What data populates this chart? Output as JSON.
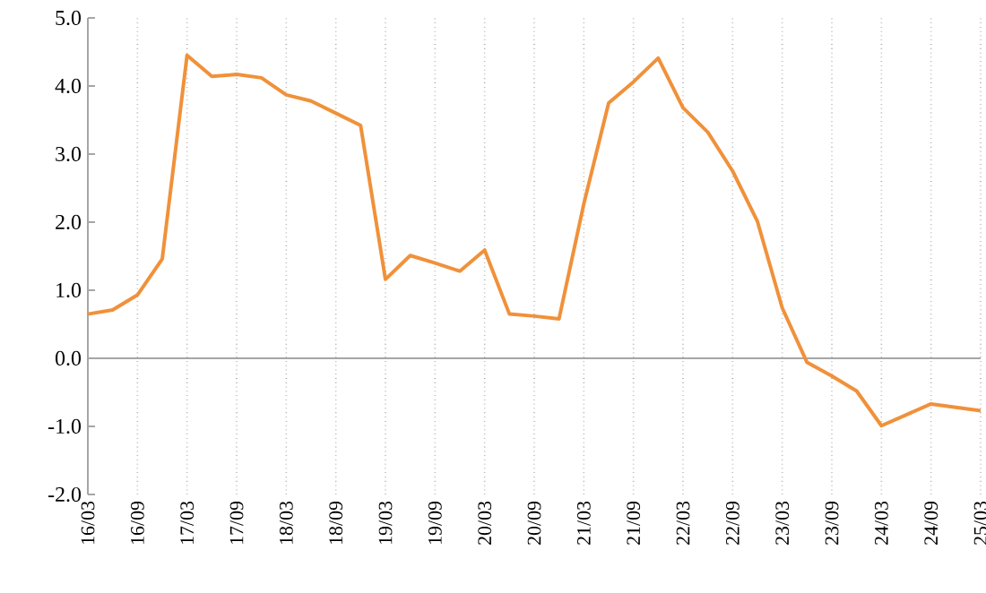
{
  "chart_data": {
    "type": "line",
    "categories": [
      "16/03",
      null,
      "16/09",
      null,
      "17/03",
      null,
      "17/09",
      null,
      "18/03",
      null,
      "18/09",
      null,
      "19/03",
      null,
      "19/09",
      null,
      "20/03",
      null,
      "20/09",
      null,
      "21/03",
      null,
      "21/09",
      null,
      "22/03",
      null,
      "22/09",
      null,
      "23/03",
      null,
      "23/09",
      null,
      "24/03",
      null,
      "24/09",
      null,
      "25/03"
    ],
    "series": [
      {
        "color": "#f0913a",
        "values": [
          0.65,
          0.71,
          0.93,
          1.46,
          4.45,
          4.14,
          4.17,
          4.12,
          3.87,
          3.78,
          3.6,
          3.42,
          1.16,
          1.51,
          1.4,
          1.28,
          1.59,
          0.65,
          0.62,
          0.58,
          2.27,
          3.75,
          4.06,
          4.41,
          3.68,
          3.32,
          2.75,
          2.01,
          0.74,
          -0.06,
          -0.26,
          -0.48,
          -0.99,
          -0.83,
          -0.67,
          -0.72,
          -0.77
        ]
      }
    ],
    "ylim": [
      -2,
      5
    ],
    "yticks": [
      {
        "value": -2,
        "label": "-2.0"
      },
      {
        "value": -1,
        "label": "-1.0"
      },
      {
        "value": 0,
        "label": "0.0"
      },
      {
        "value": 1,
        "label": "1.0"
      },
      {
        "value": 2,
        "label": "2.0"
      },
      {
        "value": 3,
        "label": "3.0"
      },
      {
        "value": 4,
        "label": "4.0"
      },
      {
        "value": 5,
        "label": "5.0"
      }
    ],
    "ref_lines": [
      {
        "axis": "y",
        "value": 0,
        "color": "#a6a6a6"
      }
    ],
    "grid": "x",
    "marker": "none",
    "line_style": "solid"
  }
}
